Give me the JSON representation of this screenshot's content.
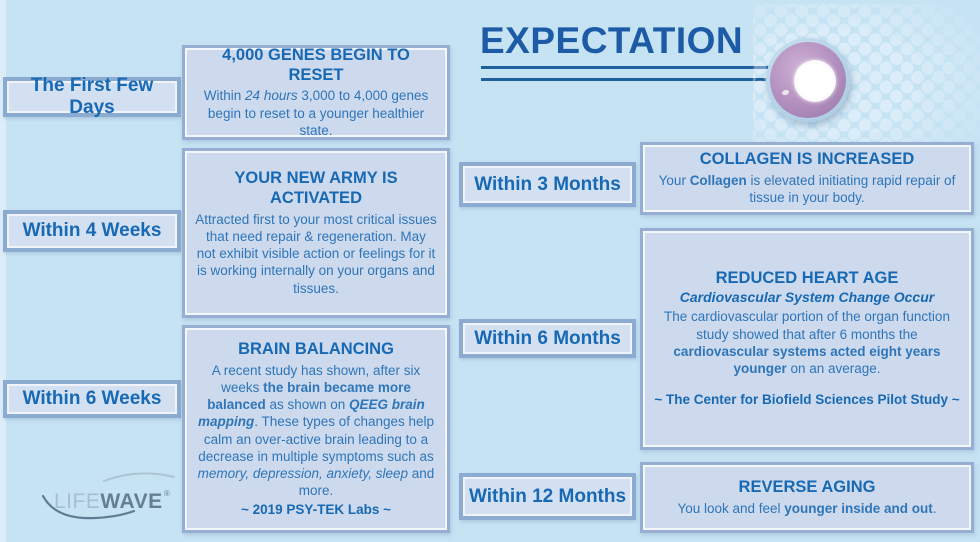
{
  "title": "EXPECTATION",
  "logo": {
    "life": "LIFE",
    "wave": "WAVE",
    "reg": "®"
  },
  "timeline": {
    "left": [
      {
        "label": "The First Few Days",
        "heading": "4,000 GENES BEGIN TO RESET",
        "body": [
          {
            "t": "Within "
          },
          {
            "t": "24 hours",
            "i": true
          },
          {
            "t": " 3,000 to 4,000 genes begin to reset to a younger healthier state."
          }
        ]
      },
      {
        "label": "Within 4 Weeks",
        "heading": "YOUR NEW ARMY IS\nACTIVATED",
        "body": [
          {
            "t": "Attracted first to your most critical issues that need repair & regeneration. May not exhibit visible action or feelings for it is working internally on your organs and tissues."
          }
        ]
      },
      {
        "label": "Within 6 Weeks",
        "heading": "BRAIN BALANCING",
        "body": [
          {
            "t": "A recent study has shown, after six weeks "
          },
          {
            "t": "the brain became more balanced",
            "b": true
          },
          {
            "t": " as shown on "
          },
          {
            "t": "QEEG brain mapping",
            "b": true,
            "i": true
          },
          {
            "t": ".  These types of changes help calm an over-active brain leading to a decrease in multiple symptoms such as "
          },
          {
            "t": "memory, depression, anxiety, sleep",
            "i": true
          },
          {
            "t": " and more."
          }
        ],
        "footer": "~ 2019 PSY-TEK Labs ~"
      }
    ],
    "right": [
      {
        "label": "Within 3 Months",
        "heading": "COLLAGEN IS INCREASED",
        "body": [
          {
            "t": "Your "
          },
          {
            "t": "Collagen",
            "b": true
          },
          {
            "t": " is elevated initiating rapid repair of tissue in your body."
          }
        ]
      },
      {
        "label": "Within 6 Months",
        "heading": "REDUCED HEART AGE",
        "subheading": "Cardiovascular System Change Occur",
        "body": [
          {
            "t": "The cardiovascular portion of the organ function study showed that after 6 months the "
          },
          {
            "t": "cardiovascular systems acted eight years younger",
            "b": true
          },
          {
            "t": " on an average."
          }
        ],
        "footer": "~ The Center for Biofield Sciences Pilot Study ~"
      },
      {
        "label": "Within 12 Months",
        "heading": "REVERSE AGING",
        "body": [
          {
            "t": "You look and feel "
          },
          {
            "t": "younger inside and out",
            "b": true
          },
          {
            "t": "."
          }
        ]
      }
    ]
  },
  "colors": {
    "background": "#c6e3f4",
    "content_box_fill": "#cdd9ed",
    "label_box_fill": "#d3e0f1",
    "box_border": "#95aed1",
    "heading_text": "#1769b4",
    "body_text": "#2e76b9",
    "title_text": "#1d5ba6",
    "patch_ring_purple": "#b794c2"
  }
}
